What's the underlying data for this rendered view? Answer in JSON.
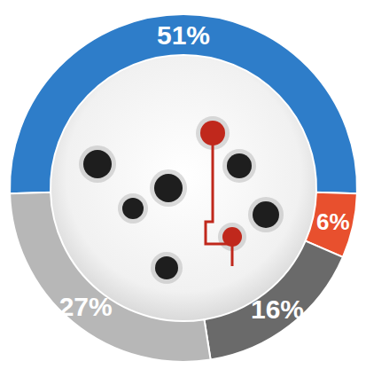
{
  "chart_data": {
    "type": "pie",
    "categories": [
      null,
      null,
      null,
      null
    ],
    "values": [
      51,
      6,
      16,
      27
    ],
    "value_labels": [
      "51%",
      "6%",
      "16%",
      "27%"
    ],
    "colors": [
      "#2e7dc9",
      "#e8502e",
      "#6a6a6a",
      "#b7b7b7"
    ],
    "data_labels": true
  }
}
